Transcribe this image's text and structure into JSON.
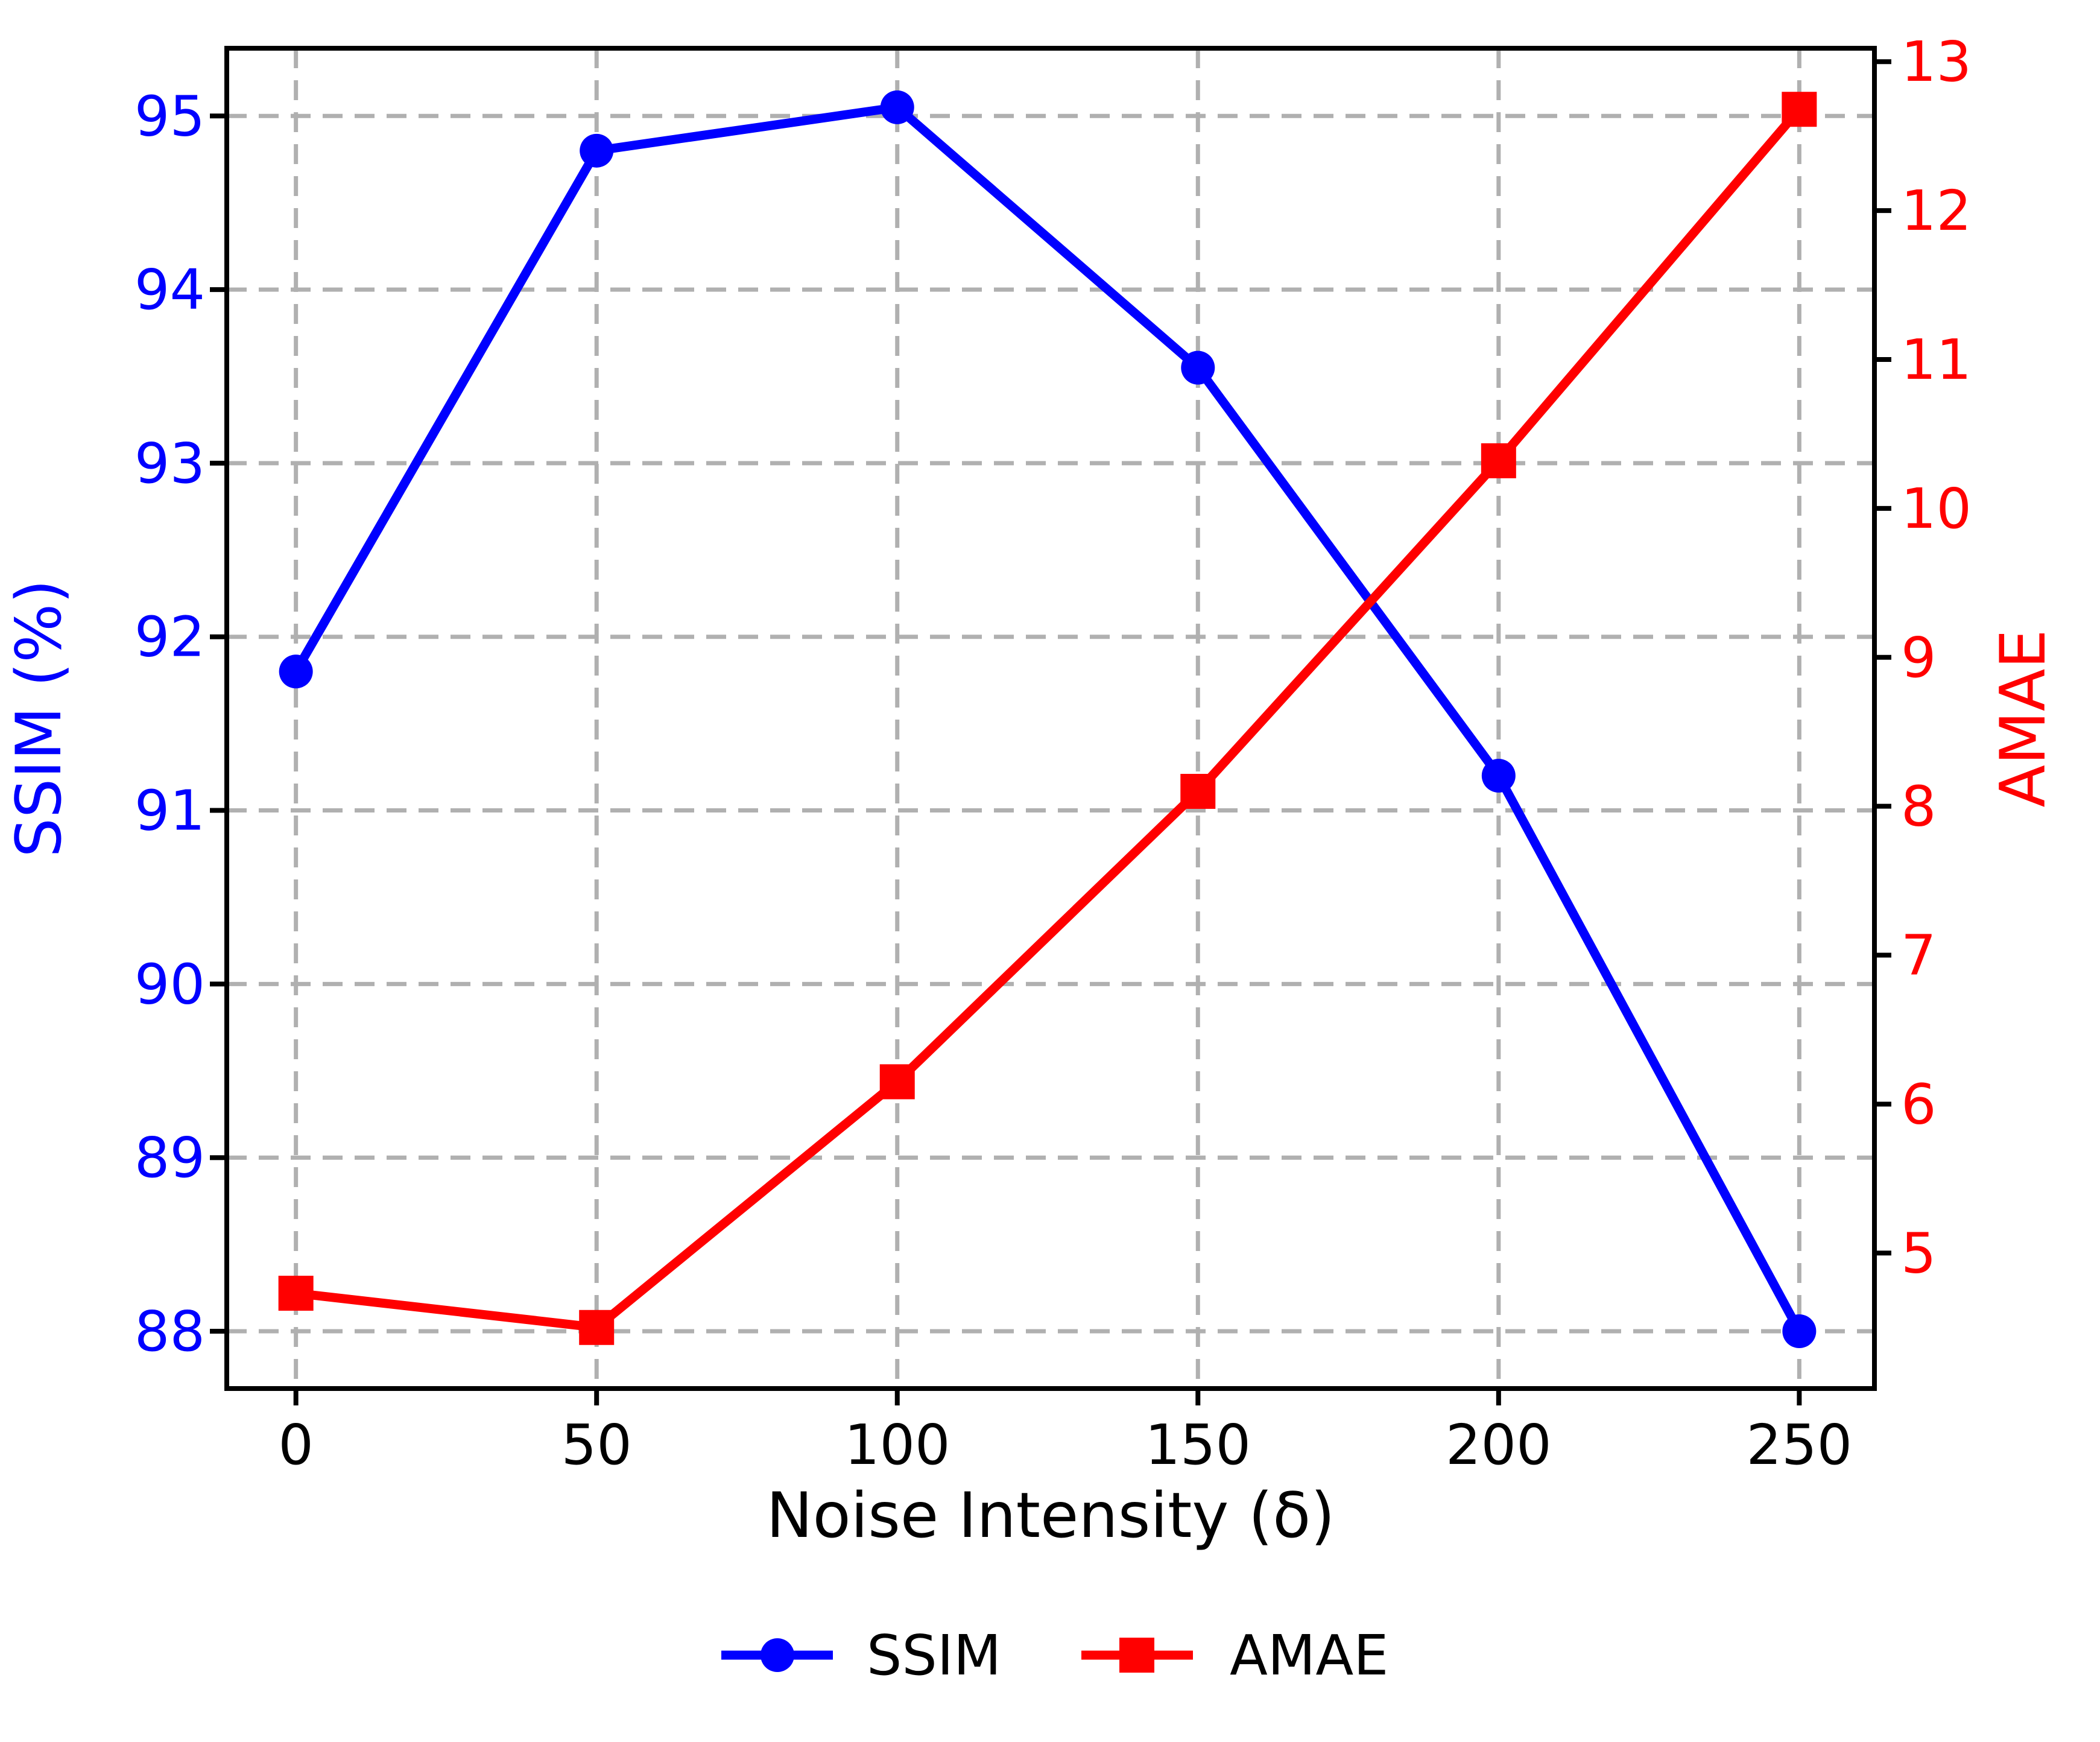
{
  "chart_data": {
    "type": "line",
    "x": [
      0,
      50,
      100,
      150,
      200,
      250
    ],
    "series": [
      {
        "name": "SSIM",
        "axis": "left",
        "color": "#0000ff",
        "marker": "circle",
        "values": [
          91.8,
          94.8,
          95.05,
          93.55,
          91.2,
          88.0
        ]
      },
      {
        "name": "AMAE",
        "axis": "right",
        "color": "#ff0000",
        "marker": "square",
        "values": [
          4.73,
          4.5,
          6.15,
          8.1,
          10.32,
          12.68
        ]
      }
    ],
    "xlabel": "Noise Intensity (δ)",
    "ylabel_left": "SSIM (%)",
    "ylabel_right": "AMAE",
    "x_ticks": [
      "0",
      "50",
      "100",
      "150",
      "200",
      "250"
    ],
    "y_ticks_left": [
      "88",
      "89",
      "90",
      "91",
      "92",
      "93",
      "94",
      "95"
    ],
    "y_ticks_right": [
      "5",
      "6",
      "7",
      "8",
      "9",
      "10",
      "11",
      "12",
      "13"
    ],
    "xlim": [
      -11.5,
      262.5
    ],
    "ylim_left": [
      87.67,
      95.39
    ],
    "ylim_right": [
      4.09,
      13.09
    ],
    "grid": true,
    "grid_on_ticks": "x-ticks and left y-ticks",
    "legend_position": "bottom-center",
    "legend": [
      "SSIM",
      "AMAE"
    ],
    "colors": {
      "ssim_line": "#0000ff",
      "amae_line": "#ff0000",
      "grid": "#b0b0b0",
      "frame": "#000000",
      "x_tick_label": "#000000",
      "left_tick_label": "#0000ff",
      "right_tick_label": "#ff0000"
    }
  }
}
